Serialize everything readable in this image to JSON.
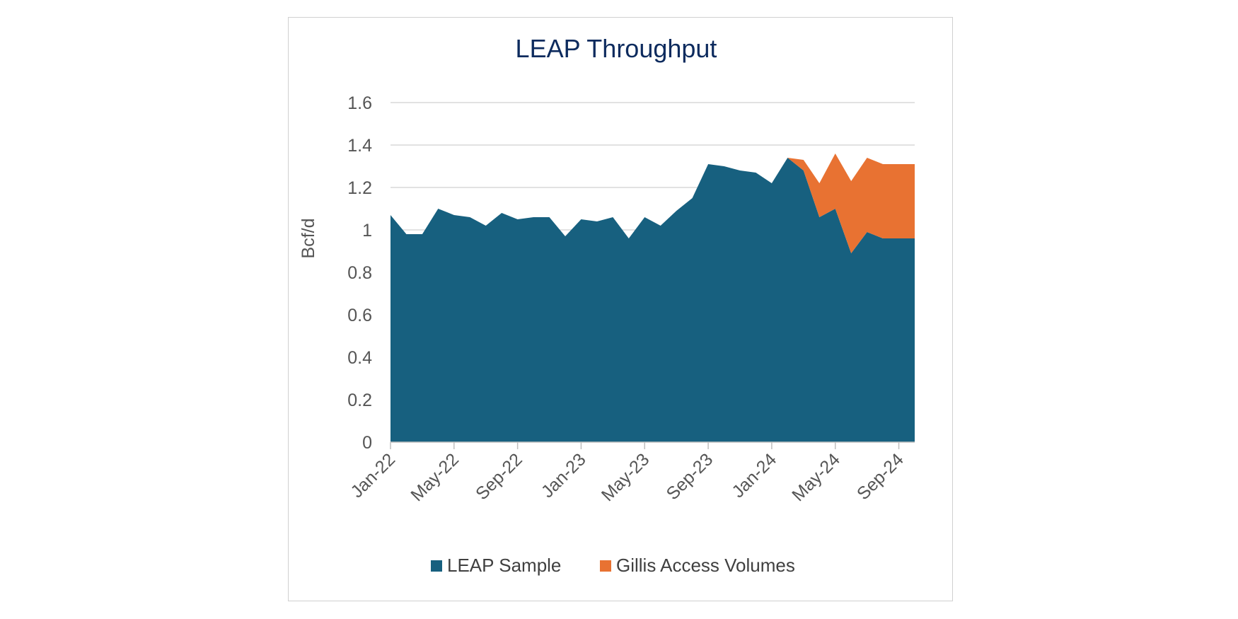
{
  "chart_data": {
    "type": "area",
    "stacked": true,
    "title": "LEAP Throughput",
    "ylabel": "Bcf/d",
    "xlabel": "",
    "ylim": [
      0,
      1.6
    ],
    "yticks": [
      "0",
      "0.2",
      "0.4",
      "0.6",
      "0.8",
      "1",
      "1.2",
      "1.4",
      "1.6"
    ],
    "x": [
      "Jan-22",
      "Feb-22",
      "Mar-22",
      "Apr-22",
      "May-22",
      "Jun-22",
      "Jul-22",
      "Aug-22",
      "Sep-22",
      "Oct-22",
      "Nov-22",
      "Dec-22",
      "Jan-23",
      "Feb-23",
      "Mar-23",
      "Apr-23",
      "May-23",
      "Jun-23",
      "Jul-23",
      "Aug-23",
      "Sep-23",
      "Oct-23",
      "Nov-23",
      "Dec-23",
      "Jan-24",
      "Feb-24",
      "Mar-24",
      "Apr-24",
      "May-24",
      "Jun-24",
      "Jul-24",
      "Aug-24",
      "Sep-24",
      "Oct-24"
    ],
    "xtick_labels": [
      "Jan-22",
      "May-22",
      "Sep-22",
      "Jan-23",
      "May-23",
      "Sep-23",
      "Jan-24",
      "May-24",
      "Sep-24"
    ],
    "series": [
      {
        "name": "LEAP Sample",
        "color": "#17607f",
        "values": [
          1.07,
          0.98,
          0.98,
          1.1,
          1.07,
          1.06,
          1.02,
          1.08,
          1.05,
          1.06,
          1.06,
          0.97,
          1.05,
          1.04,
          1.06,
          0.96,
          1.06,
          1.02,
          1.09,
          1.15,
          1.31,
          1.3,
          1.28,
          1.27,
          1.22,
          1.34,
          1.28,
          1.06,
          1.1,
          0.89,
          0.99,
          0.96,
          0.96,
          0.96
        ]
      },
      {
        "name": "Gillis Access Volumes",
        "color": "#e87232",
        "values": [
          0,
          0,
          0,
          0,
          0,
          0,
          0,
          0,
          0,
          0,
          0,
          0,
          0,
          0,
          0,
          0,
          0,
          0,
          0,
          0,
          0,
          0,
          0,
          0,
          0,
          0,
          0.05,
          0.16,
          0.26,
          0.34,
          0.35,
          0.35,
          0.35,
          0.35
        ]
      }
    ],
    "grid": true,
    "legend": "bottom"
  }
}
